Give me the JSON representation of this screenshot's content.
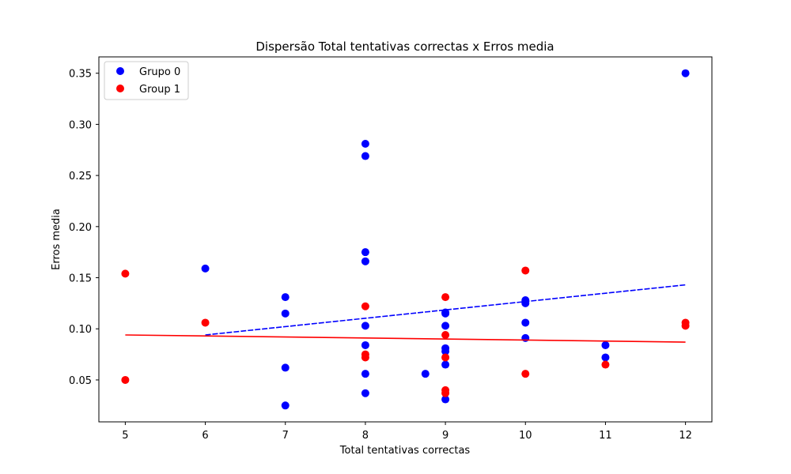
{
  "chart_data": {
    "type": "scatter",
    "title": "Dispersão Total tentativas correctas x Erros media",
    "xlabel": "Total tentativas correctas",
    "ylabel": "Erros media",
    "xlim": [
      4.67,
      12.33
    ],
    "ylim": [
      0.009,
      0.366
    ],
    "xticks": [
      5,
      6,
      7,
      8,
      9,
      10,
      11,
      12
    ],
    "yticks": [
      0.05,
      0.1,
      0.15,
      0.2,
      0.25,
      0.3,
      0.35
    ],
    "ytick_labels": [
      "0.05",
      "0.10",
      "0.15",
      "0.20",
      "0.25",
      "0.30",
      "0.35"
    ],
    "grid": false,
    "legend_position": "top-left",
    "series": [
      {
        "name": "Grupo 0",
        "color": "#0000ff",
        "points": [
          [
            6,
            0.159
          ],
          [
            7,
            0.131
          ],
          [
            7,
            0.115
          ],
          [
            7,
            0.062
          ],
          [
            7,
            0.025
          ],
          [
            8,
            0.281
          ],
          [
            8,
            0.269
          ],
          [
            8,
            0.175
          ],
          [
            8,
            0.166
          ],
          [
            8,
            0.103
          ],
          [
            8,
            0.084
          ],
          [
            8,
            0.056
          ],
          [
            8,
            0.037
          ],
          [
            8.75,
            0.056
          ],
          [
            9,
            0.116
          ],
          [
            9,
            0.115
          ],
          [
            9,
            0.103
          ],
          [
            9,
            0.081
          ],
          [
            9,
            0.078
          ],
          [
            9,
            0.065
          ],
          [
            9,
            0.031
          ],
          [
            10,
            0.128
          ],
          [
            10,
            0.125
          ],
          [
            10,
            0.106
          ],
          [
            10,
            0.091
          ],
          [
            11,
            0.084
          ],
          [
            11,
            0.072
          ],
          [
            12,
            0.35
          ]
        ],
        "trend": [
          [
            6,
            0.094
          ],
          [
            12,
            0.143
          ]
        ]
      },
      {
        "name": "Group 1",
        "color": "#ff0000",
        "points": [
          [
            5,
            0.154
          ],
          [
            5,
            0.05
          ],
          [
            6,
            0.106
          ],
          [
            8,
            0.122
          ],
          [
            8,
            0.075
          ],
          [
            8,
            0.072
          ],
          [
            9,
            0.131
          ],
          [
            9,
            0.094
          ],
          [
            9,
            0.072
          ],
          [
            9,
            0.04
          ],
          [
            9,
            0.037
          ],
          [
            10,
            0.157
          ],
          [
            10,
            0.056
          ],
          [
            11,
            0.065
          ],
          [
            12,
            0.106
          ],
          [
            12,
            0.103
          ]
        ],
        "trend": [
          [
            5,
            0.094
          ],
          [
            12,
            0.087
          ]
        ]
      }
    ]
  }
}
